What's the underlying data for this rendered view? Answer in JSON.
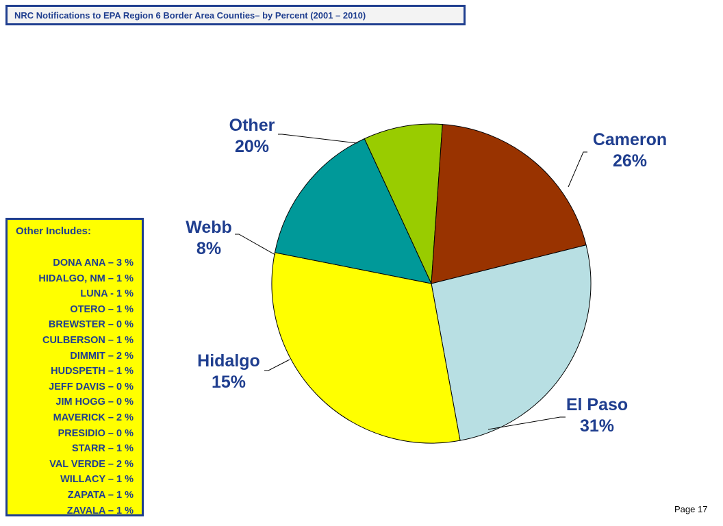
{
  "title": "NRC Notifications to EPA Region 6  Border Area  Counties– by Percent (2001 – 2010)",
  "legend": {
    "heading": "Other Includes:",
    "items": [
      "DONA ANA – 3 %",
      "HIDALGO, NM – 1 %",
      "LUNA  - 1 %",
      "OTERO – 1 %",
      "BREWSTER – 0 %",
      "CULBERSON – 1 %",
      "DIMMIT – 2 %",
      "HUDSPETH – 1 %",
      "JEFF DAVIS – 0 %",
      "JIM HOGG – 0 %",
      "MAVERICK – 2 %",
      "PRESIDIO – 0 %",
      "STARR – 1 %",
      "VAL VERDE – 2 %",
      "WILLACY – 1 %",
      "ZAPATA – 1 %",
      "ZAVALA – 1 %"
    ]
  },
  "page_label": "Page 17",
  "colors": {
    "text": "#1f3e8f",
    "border": "#1f3e8f",
    "legend_bg": "#ffff00"
  },
  "chart_data": {
    "type": "pie",
    "slices": [
      {
        "name": "Cameron",
        "label": "26%",
        "value": 26,
        "color": "#b8dfe3"
      },
      {
        "name": "El Paso",
        "label": "31%",
        "value": 31,
        "color": "#ffff00"
      },
      {
        "name": "Hidalgo",
        "label": "15%",
        "value": 15,
        "color": "#009999"
      },
      {
        "name": "Webb",
        "label": "8%",
        "value": 8,
        "color": "#99cc00"
      },
      {
        "name": "Other",
        "label": "20%",
        "value": 20,
        "color": "#993300"
      }
    ]
  }
}
